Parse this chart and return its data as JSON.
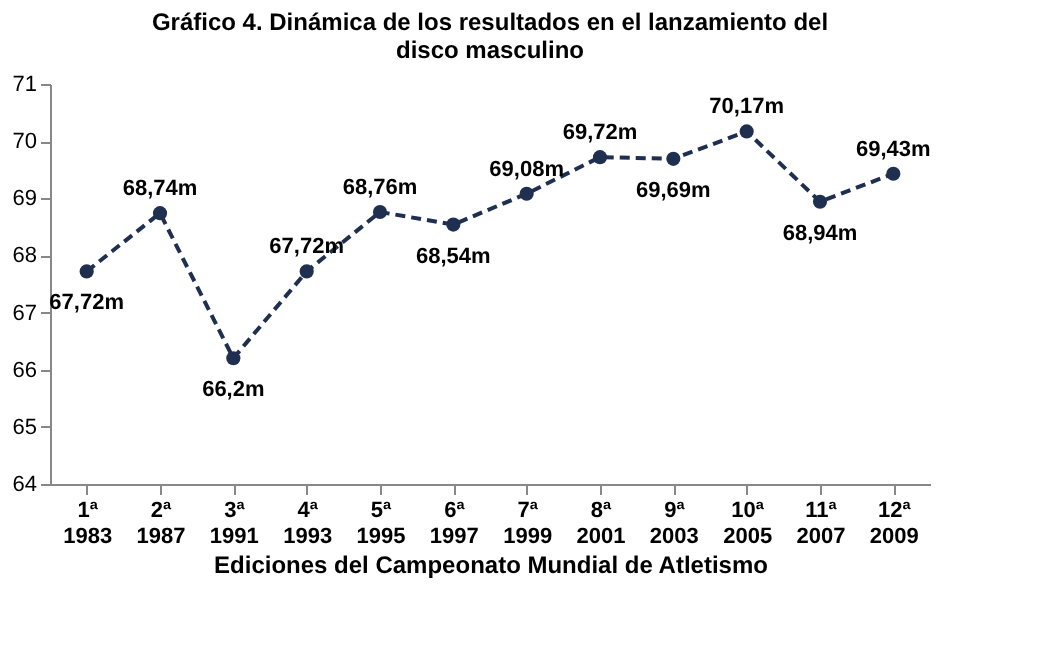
{
  "chart_data": {
    "type": "line",
    "title": "Gráfico 4. Dinámica de los resultados en el lanzamiento del disco masculino",
    "xlabel": "Ediciones del Campeonato Mundial de Atletismo",
    "categories": [
      "1ª 1983",
      "2ª 1987",
      "3ª 1991",
      "4ª 1993",
      "5ª 1995",
      "6ª 1997",
      "7ª 1999",
      "8ª 2001",
      "9ª 2003",
      "10ª 2005",
      "11ª 2007",
      "12ª 2009"
    ],
    "series": [
      {
        "color": "#1f2f4f",
        "values": [
          67.72,
          68.74,
          66.2,
          67.72,
          68.76,
          68.54,
          69.08,
          69.72,
          69.69,
          70.17,
          68.94,
          69.43
        ],
        "value_labels": [
          "67,72m",
          "68,74m",
          "66,2m",
          "67,72m",
          "68,76m",
          "68,54m",
          "69,08m",
          "69,72m",
          "69,69m",
          "70,17m",
          "68,94m",
          "69,43m"
        ]
      }
    ],
    "ylim": [
      64,
      71
    ],
    "yticks": [
      64,
      65,
      66,
      67,
      68,
      69,
      70,
      71
    ],
    "grid": false,
    "marker": "circle",
    "line_style": "dashed"
  }
}
